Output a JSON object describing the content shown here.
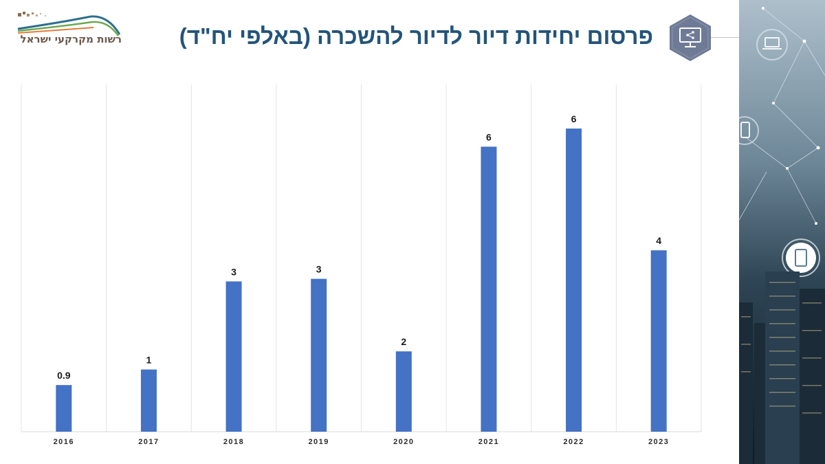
{
  "header": {
    "title": "פרסום יחידות דיור לדיור להשכרה (באלפי יח\"ד)",
    "logo_text": "רשות מקרקעי ישראל",
    "badge_icon": "monitor-share-icon"
  },
  "side_panel": {
    "icons": [
      "laptop-icon",
      "phone-icon",
      "tablet-icon"
    ]
  },
  "colors": {
    "bar": "#4472c4",
    "title": "#23547a",
    "badge": "#6f7b96"
  },
  "chart_data": {
    "type": "bar",
    "categories": [
      "2016",
      "2017",
      "2018",
      "2019",
      "2020",
      "2021",
      "2022",
      "2023"
    ],
    "values": [
      0.9,
      1.2,
      2.9,
      2.95,
      1.55,
      5.5,
      5.85,
      3.5
    ],
    "value_labels": [
      "0.9",
      "1",
      "3",
      "3",
      "2",
      "6",
      "6",
      "4"
    ],
    "ylim": [
      0,
      6.5
    ],
    "title": "",
    "xlabel": "",
    "ylabel": "",
    "grid": "vertical"
  }
}
